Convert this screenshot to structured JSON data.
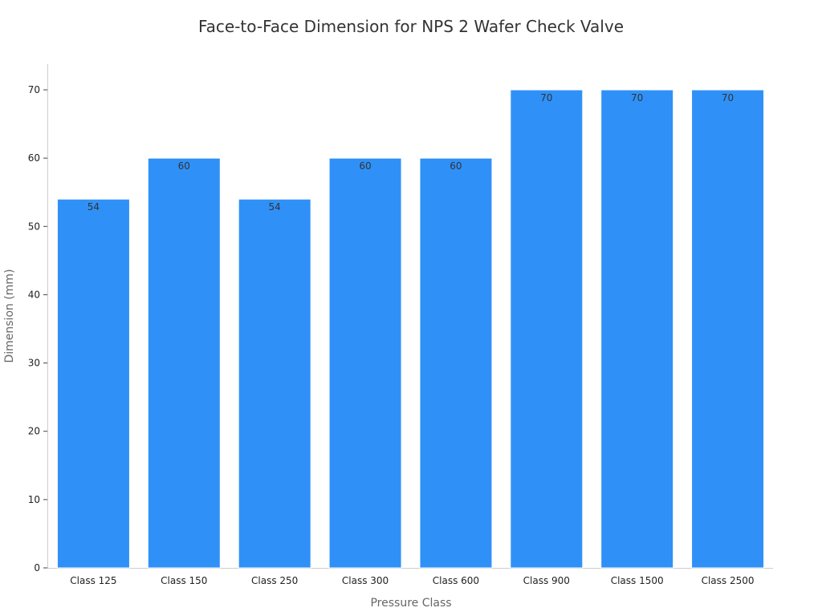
{
  "chart_data": {
    "type": "bar",
    "title": "Face-to-Face Dimension for NPS 2 Wafer Check Valve",
    "xlabel": "Pressure Class",
    "ylabel": "Dimension (mm)",
    "categories": [
      "Class 125",
      "Class 150",
      "Class 250",
      "Class 300",
      "Class 600",
      "Class 900",
      "Class 1500",
      "Class 2500"
    ],
    "values": [
      54,
      60,
      54,
      60,
      60,
      70,
      70,
      70
    ],
    "data_labels": [
      "54",
      "60",
      "54",
      "60",
      "60",
      "70",
      "70",
      "70"
    ],
    "ylim": [
      0,
      74
    ],
    "yticks": [
      0,
      10,
      20,
      30,
      40,
      50,
      60,
      70
    ],
    "ytick_labels": [
      "0",
      "10",
      "20",
      "30",
      "40",
      "50",
      "60",
      "70"
    ],
    "grid": false,
    "legend": "none",
    "bar_color": "#2f91f7"
  }
}
